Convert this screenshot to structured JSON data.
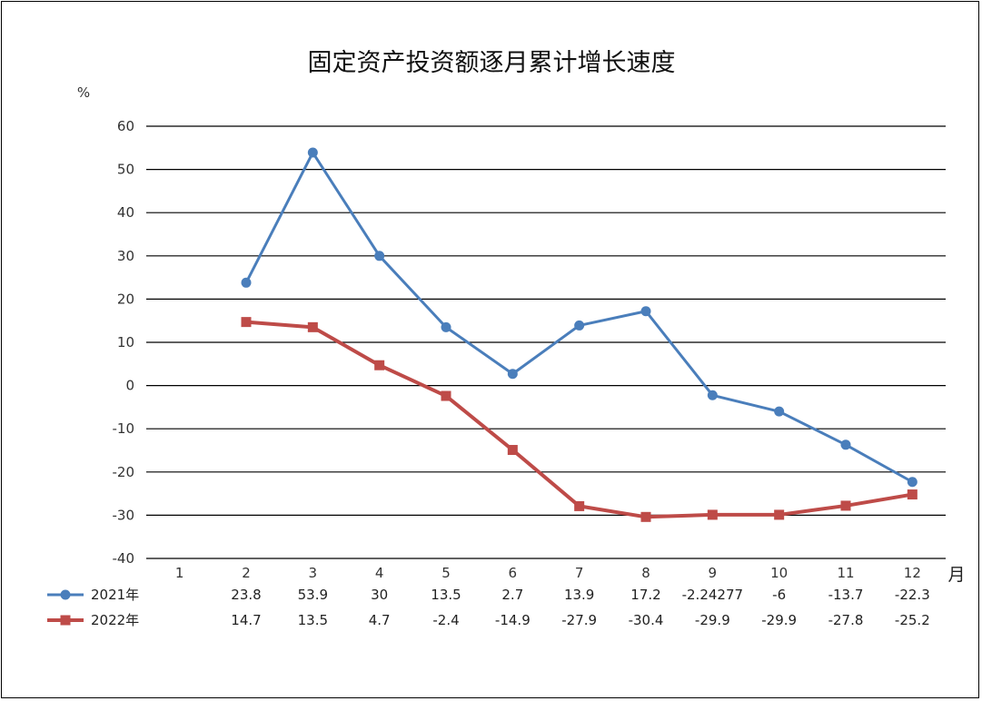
{
  "chart_data": {
    "type": "line",
    "title": "固定资产投资额逐月累计增长速度",
    "ylabel": "%",
    "xlabel": "月",
    "ylim": [
      -40,
      60
    ],
    "yticks": [
      "60",
      "50",
      "40",
      "30",
      "20",
      "10",
      "0",
      "-10",
      "-20",
      "-30",
      "-40"
    ],
    "categories": [
      "1",
      "2",
      "3",
      "4",
      "5",
      "6",
      "7",
      "8",
      "9",
      "10",
      "11",
      "12"
    ],
    "grid": true,
    "legend": "data-table-bottom",
    "series": [
      {
        "name": "2021年",
        "color": "#4a7ebb",
        "marker": "circle",
        "values": [
          null,
          23.8,
          53.9,
          30,
          13.5,
          2.7,
          13.9,
          17.2,
          -2.24277,
          -6,
          -13.7,
          -22.3
        ],
        "labels": [
          "",
          "23.8",
          "53.9",
          "30",
          "13.5",
          "2.7",
          "13.9",
          "17.2",
          "-2.24277",
          "-6",
          "-13.7",
          "-22.3"
        ]
      },
      {
        "name": "2022年",
        "color": "#be4b48",
        "marker": "square",
        "values": [
          null,
          14.7,
          13.5,
          4.7,
          -2.4,
          -14.9,
          -27.9,
          -30.4,
          -29.9,
          -29.9,
          -27.8,
          -25.2
        ],
        "labels": [
          "",
          "14.7",
          "13.5",
          "4.7",
          "-2.4",
          "-14.9",
          "-27.9",
          "-30.4",
          "-29.9",
          "-29.9",
          "-27.8",
          "-25.2"
        ]
      }
    ]
  }
}
